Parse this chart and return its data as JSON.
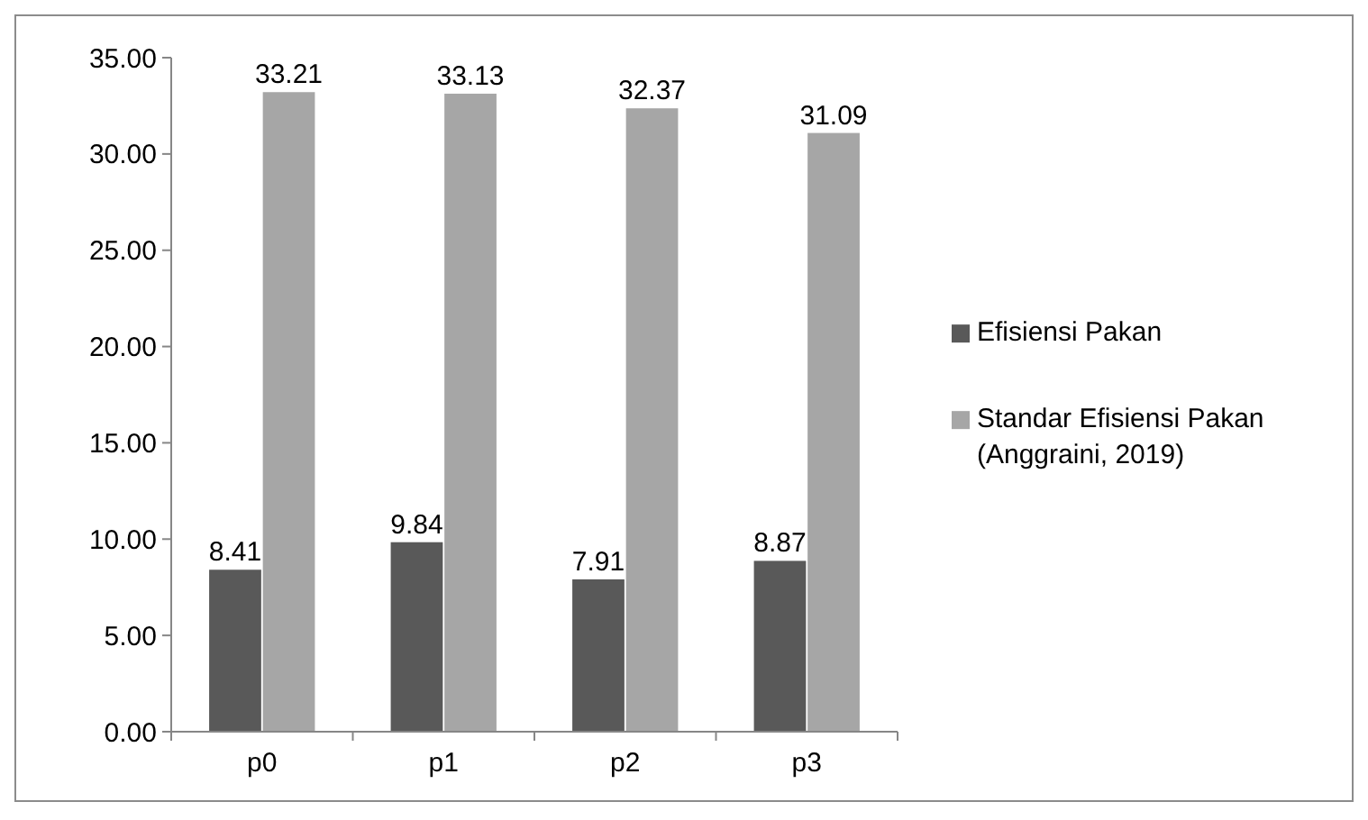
{
  "chart_data": {
    "type": "bar",
    "categories": [
      "p0",
      "p1",
      "p2",
      "p3"
    ],
    "series": [
      {
        "name": "Efisiensi Pakan",
        "color": "#595959",
        "values": [
          8.41,
          9.84,
          7.91,
          8.87
        ]
      },
      {
        "name": "Standar Efisiensi Pakan (Anggraini, 2019)",
        "color": "#a6a6a6",
        "values": [
          33.21,
          33.13,
          32.37,
          31.09
        ]
      }
    ],
    "ylim": [
      0,
      35
    ],
    "yticks": [
      {
        "value": 0,
        "label": "0.00"
      },
      {
        "value": 5,
        "label": "5.00"
      },
      {
        "value": 10,
        "label": "10.00"
      },
      {
        "value": 15,
        "label": "15.00"
      },
      {
        "value": 20,
        "label": "20.00"
      },
      {
        "value": 25,
        "label": "25.00"
      },
      {
        "value": 30,
        "label": "30.00"
      },
      {
        "value": 35,
        "label": "35.00"
      }
    ],
    "grid": false,
    "legend": "right",
    "data_labels": true
  }
}
